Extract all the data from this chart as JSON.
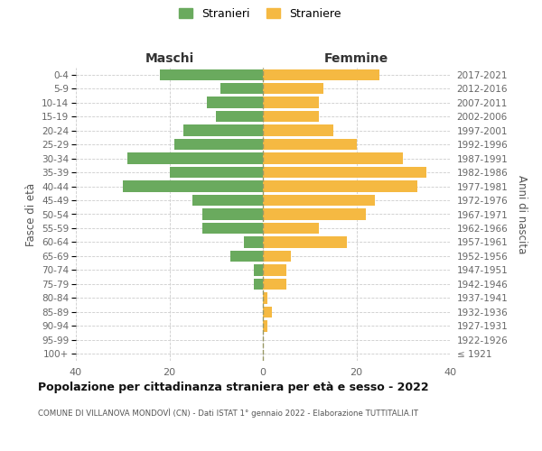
{
  "age_groups": [
    "100+",
    "95-99",
    "90-94",
    "85-89",
    "80-84",
    "75-79",
    "70-74",
    "65-69",
    "60-64",
    "55-59",
    "50-54",
    "45-49",
    "40-44",
    "35-39",
    "30-34",
    "25-29",
    "20-24",
    "15-19",
    "10-14",
    "5-9",
    "0-4"
  ],
  "birth_years": [
    "≤ 1921",
    "1922-1926",
    "1927-1931",
    "1932-1936",
    "1937-1941",
    "1942-1946",
    "1947-1951",
    "1952-1956",
    "1957-1961",
    "1962-1966",
    "1967-1971",
    "1972-1976",
    "1977-1981",
    "1982-1986",
    "1987-1991",
    "1992-1996",
    "1997-2001",
    "2002-2006",
    "2007-2011",
    "2012-2016",
    "2017-2021"
  ],
  "maschi": [
    0,
    0,
    0,
    0,
    0,
    2,
    2,
    7,
    4,
    13,
    13,
    15,
    30,
    20,
    29,
    19,
    17,
    10,
    12,
    9,
    22
  ],
  "femmine": [
    0,
    0,
    1,
    2,
    1,
    5,
    5,
    6,
    18,
    12,
    22,
    24,
    33,
    35,
    30,
    20,
    15,
    12,
    12,
    13,
    25
  ],
  "maschi_color": "#6aaa5e",
  "femmine_color": "#f5b942",
  "background_color": "#ffffff",
  "grid_color": "#cccccc",
  "title": "Popolazione per cittadinanza straniera per età e sesso - 2022",
  "subtitle": "COMUNE DI VILLANOVA MONDOVÌ (CN) - Dati ISTAT 1° gennaio 2022 - Elaborazione TUTTITALIA.IT",
  "xlabel_left": "Maschi",
  "xlabel_right": "Femmine",
  "ylabel_left": "Fasce di età",
  "ylabel_right": "Anni di nascita",
  "legend_stranieri": "Stranieri",
  "legend_straniere": "Straniere",
  "xlim": 40,
  "bar_height": 0.8
}
